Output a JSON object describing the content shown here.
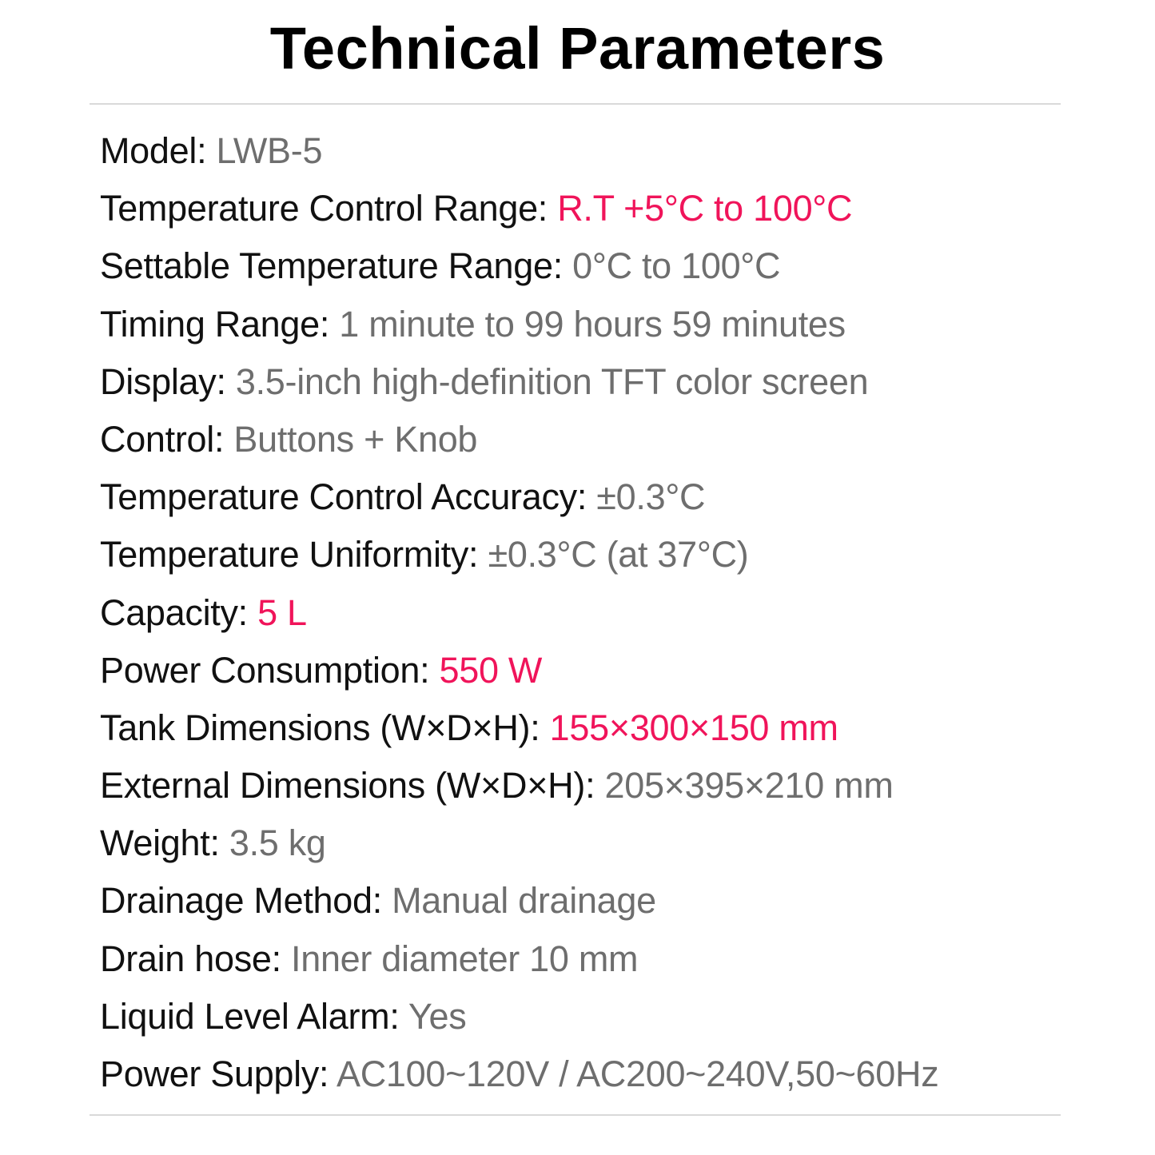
{
  "title": "Technical Parameters",
  "colors": {
    "label": "#111111",
    "value": "#6e6e6e",
    "highlight": "#f0145a"
  },
  "params": [
    {
      "label": "Model:",
      "value": "LWB-5",
      "highlight": false
    },
    {
      "label": "Temperature Control Range:",
      "value": "R.T +5°C to 100°C",
      "highlight": true
    },
    {
      "label": "Settable Temperature Range:",
      "value": "0°C to 100°C",
      "highlight": false
    },
    {
      "label": "Timing Range:",
      "value": "1 minute to 99 hours 59 minutes",
      "highlight": false
    },
    {
      "label": "Display:",
      "value": "3.5-inch high-definition TFT color screen",
      "highlight": false
    },
    {
      "label": "Control:",
      "value": "Buttons + Knob",
      "highlight": false
    },
    {
      "label": "Temperature Control Accuracy:",
      "value": "±0.3°C",
      "highlight": false
    },
    {
      "label": "Temperature Uniformity:",
      "value": "±0.3°C (at 37°C)",
      "highlight": false
    },
    {
      "label": "Capacity:",
      "value": "5 L",
      "highlight": true
    },
    {
      "label": "Power Consumption:",
      "value": "550 W",
      "highlight": true
    },
    {
      "label": "Tank Dimensions (W×D×H):",
      "value": "155×300×150 mm",
      "highlight": true
    },
    {
      "label": "External Dimensions (W×D×H):",
      "value": "205×395×210 mm",
      "highlight": false
    },
    {
      "label": "Weight:",
      "value": "3.5 kg",
      "highlight": false
    },
    {
      "label": "Drainage Method:",
      "value": "Manual drainage",
      "highlight": false
    },
    {
      "label": "Drain hose:",
      "value": "Inner diameter 10 mm",
      "highlight": false
    },
    {
      "label": "Liquid Level Alarm:",
      "value": "Yes",
      "highlight": false
    },
    {
      "label": "Power Supply:",
      "value": "AC100~120V / AC200~240V,50~60Hz",
      "highlight": false
    }
  ]
}
